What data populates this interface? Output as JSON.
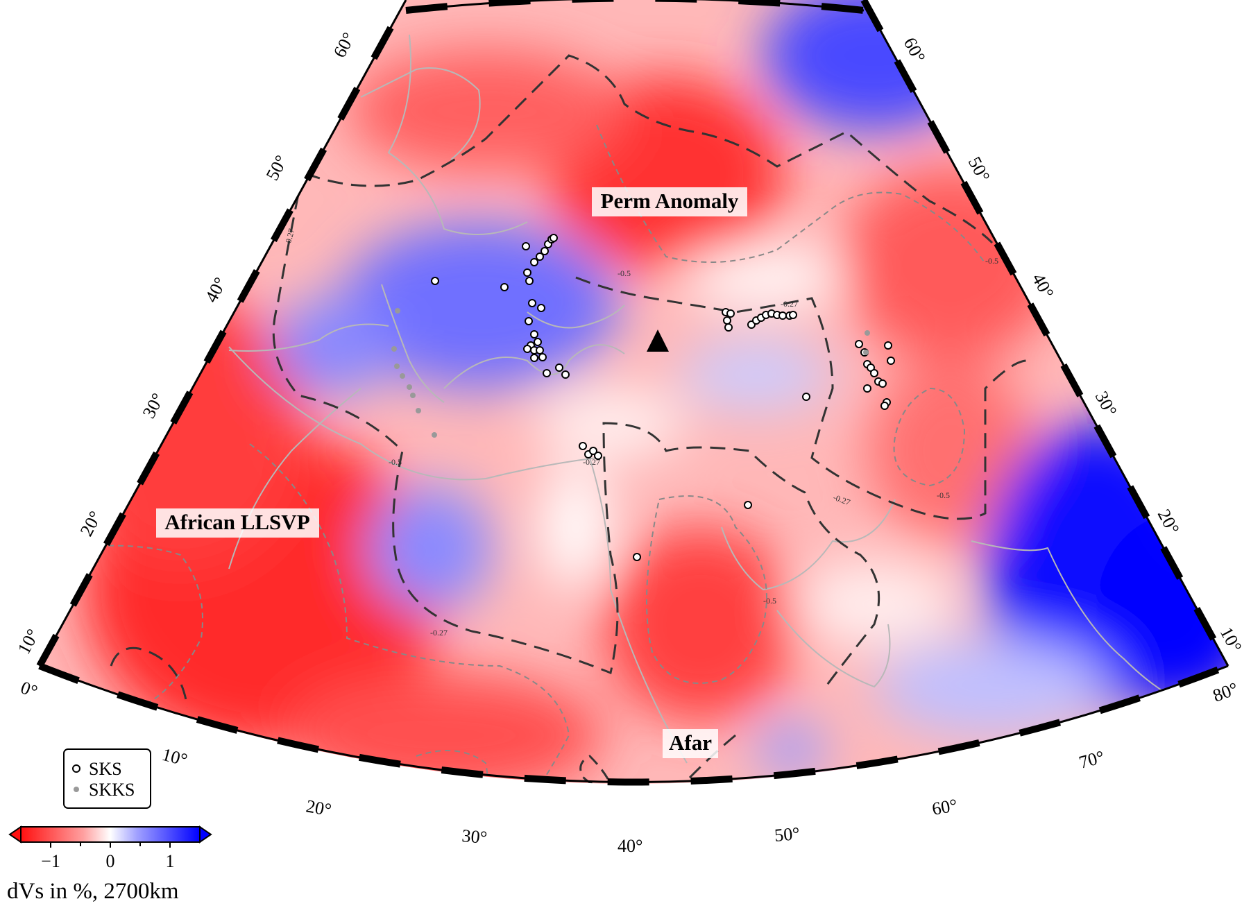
{
  "map": {
    "labels": {
      "perm": "Perm Anomaly",
      "african": "African LLSVP",
      "afar": "Afar"
    },
    "lat_ticks_left": [
      "60°",
      "50°",
      "40°",
      "30°",
      "20°",
      "10°"
    ],
    "lat_ticks_right": [
      "60°",
      "50°",
      "40°",
      "30°",
      "20°",
      "10°"
    ],
    "lon_ticks_bottom": [
      "0°",
      "10°",
      "20°",
      "30°",
      "40°",
      "50°",
      "60°",
      "70°",
      "80°"
    ],
    "contour_labels": [
      "-0.27",
      "-0.5"
    ],
    "colors": {
      "slow": "#ff2020",
      "fast": "#0000ff",
      "neutral": "#ffffff",
      "contour_dark": "#333333",
      "contour_light": "#888888",
      "coast": "#b8b8b8"
    },
    "marker": "triangle-station-icon"
  },
  "legend": {
    "sks_label": "SKS",
    "skks_label": "SKKS"
  },
  "colorbar": {
    "ticks": [
      "−1",
      "0",
      "1"
    ],
    "title": "dVs in %, 2700km"
  }
}
